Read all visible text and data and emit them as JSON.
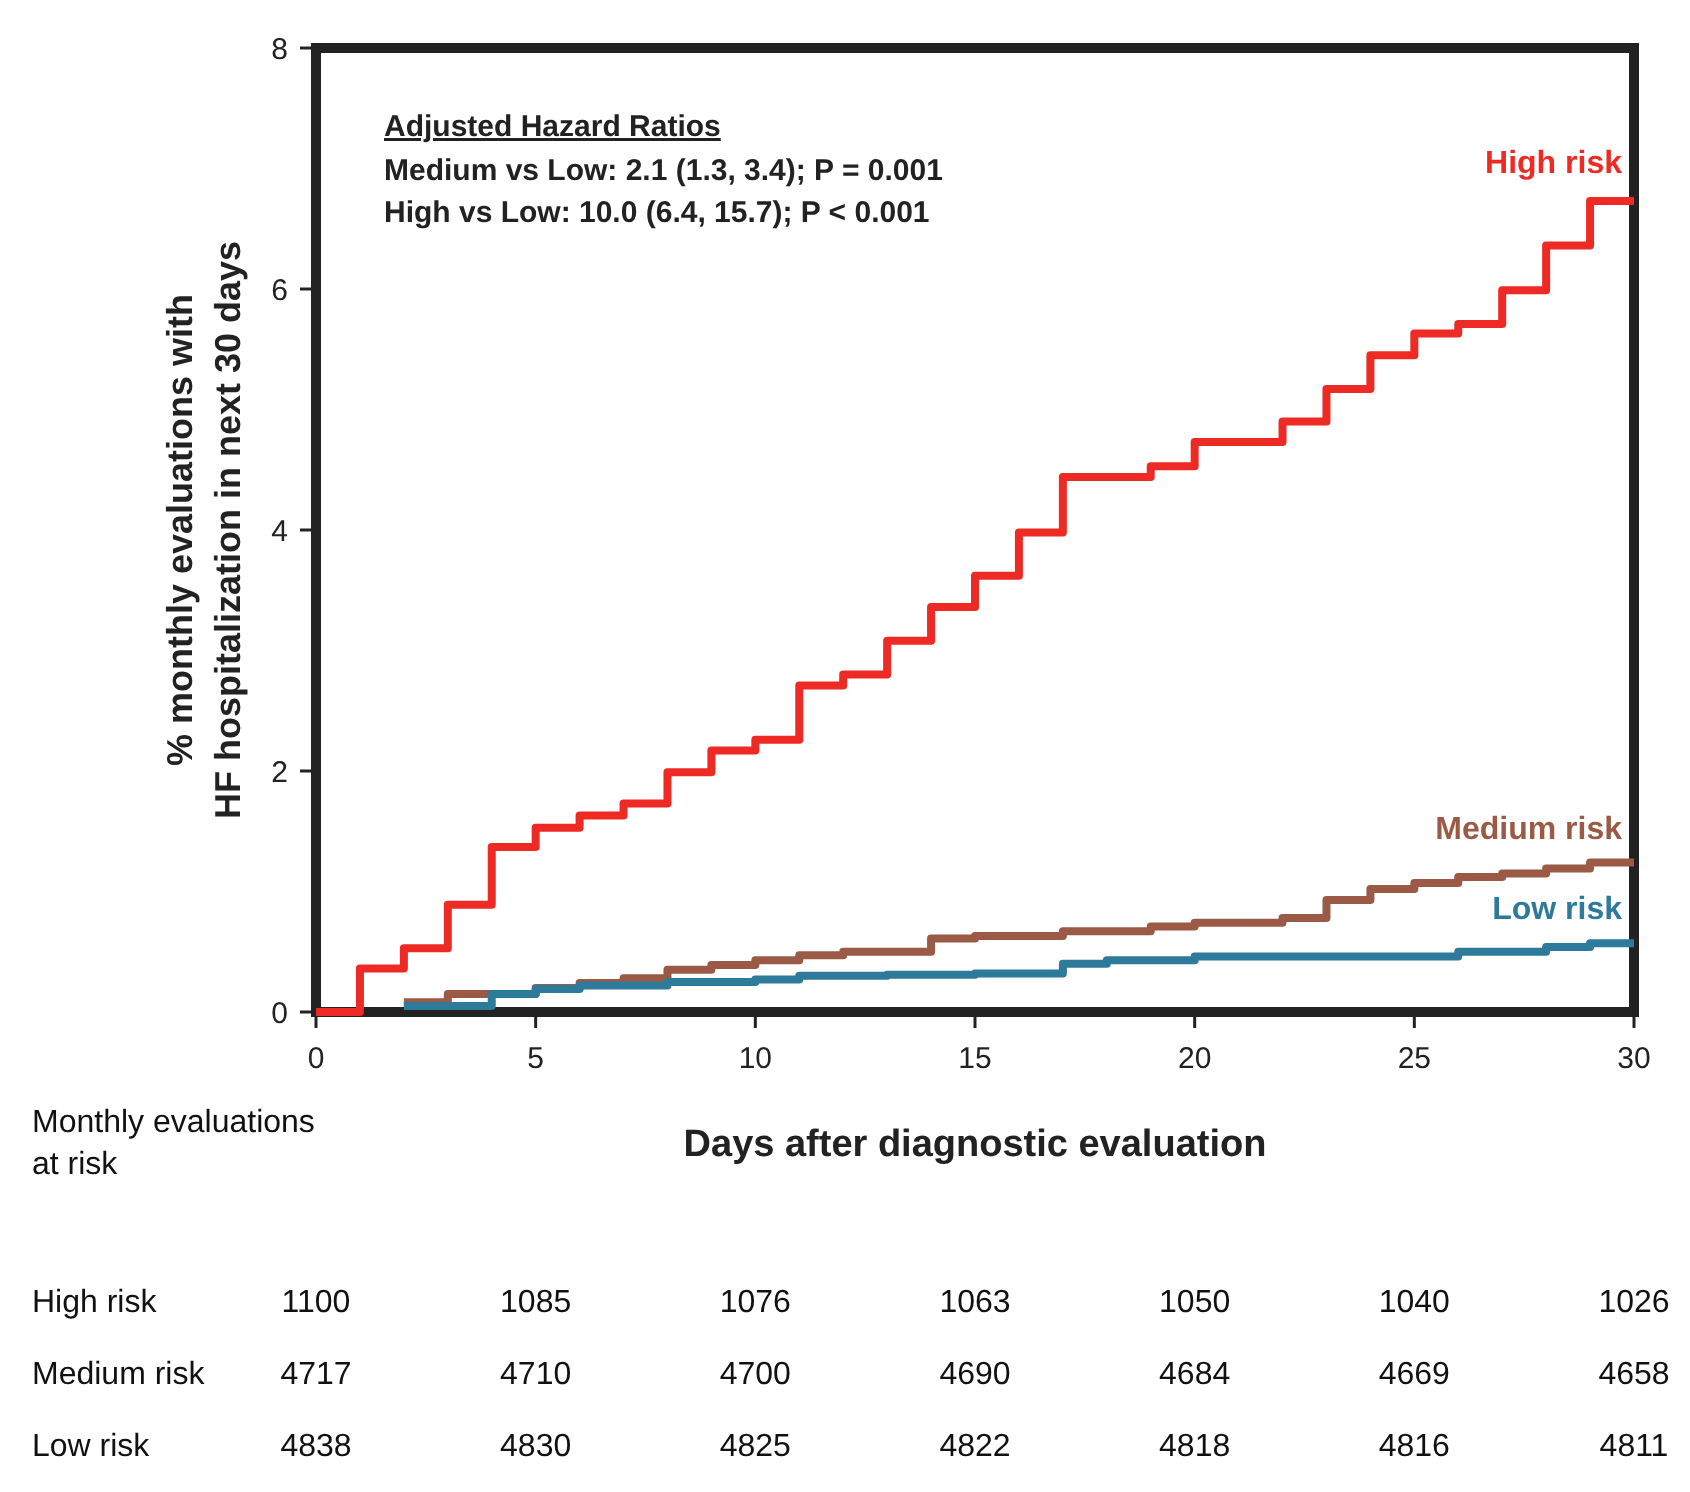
{
  "chart_data": {
    "type": "step",
    "xlabel": "Days after diagnostic evaluation",
    "ylabel": "% monthly evaluations with\nHF hospitalization in next 30 days",
    "xlim": [
      0,
      30
    ],
    "xticks": [
      0,
      5,
      10,
      15,
      20,
      25,
      30
    ],
    "ylim": [
      0,
      8
    ],
    "yticks": [
      0,
      2,
      4,
      6,
      8
    ],
    "grid": false,
    "marker": "none",
    "line_style": "solid",
    "series": [
      {
        "name": "High risk",
        "color": "#ee2a24",
        "x": [
          0,
          1,
          2,
          3,
          4,
          5,
          6,
          7,
          8,
          9,
          10,
          11,
          12,
          13,
          14,
          15,
          16,
          17,
          19,
          20,
          22,
          23,
          24,
          25,
          26,
          27,
          28,
          29,
          30
        ],
        "values": [
          0,
          0.36,
          0.53,
          0.89,
          1.37,
          1.53,
          1.63,
          1.73,
          1.99,
          2.17,
          2.26,
          2.71,
          2.8,
          3.08,
          3.36,
          3.62,
          3.98,
          4.44,
          4.53,
          4.73,
          4.9,
          5.17,
          5.45,
          5.63,
          5.71,
          5.99,
          6.36,
          6.73,
          6.73
        ]
      },
      {
        "name": "Medium risk",
        "color": "#9a5a45",
        "x": [
          2,
          3,
          5,
          6,
          7,
          8,
          9,
          10,
          11,
          12,
          14,
          15,
          17,
          19,
          20,
          22,
          23,
          24,
          25,
          26,
          27,
          28,
          29,
          30
        ],
        "values": [
          0.08,
          0.15,
          0.2,
          0.24,
          0.28,
          0.35,
          0.39,
          0.43,
          0.47,
          0.5,
          0.61,
          0.63,
          0.67,
          0.71,
          0.74,
          0.78,
          0.93,
          1.02,
          1.07,
          1.12,
          1.15,
          1.19,
          1.24,
          1.24
        ]
      },
      {
        "name": "Low risk",
        "color": "#2e7a9a",
        "x": [
          2,
          4,
          5,
          6,
          8,
          10,
          11,
          13,
          15,
          17,
          18,
          20,
          26,
          28,
          29,
          30
        ],
        "values": [
          0.05,
          0.15,
          0.19,
          0.22,
          0.25,
          0.27,
          0.3,
          0.31,
          0.32,
          0.4,
          0.43,
          0.46,
          0.5,
          0.54,
          0.57,
          0.57
        ]
      }
    ],
    "annotations": [
      "Adjusted Hazard Ratios",
      "Medium vs Low: 2.1 (1.3, 3.4); P = 0.001",
      "High vs Low: 10.0 (6.4, 15.7); P < 0.001",
      "Monthly evaluations at risk",
      "High risk",
      "1100",
      "1085",
      "1076",
      "1063",
      "1050",
      "1040",
      "1026",
      "Medium risk",
      "4717",
      "4710",
      "4700",
      "4690",
      "4684",
      "4669",
      "4658",
      "Low risk",
      "4838",
      "4830",
      "4825",
      "4822",
      "4818",
      "4816",
      "4811"
    ]
  }
}
